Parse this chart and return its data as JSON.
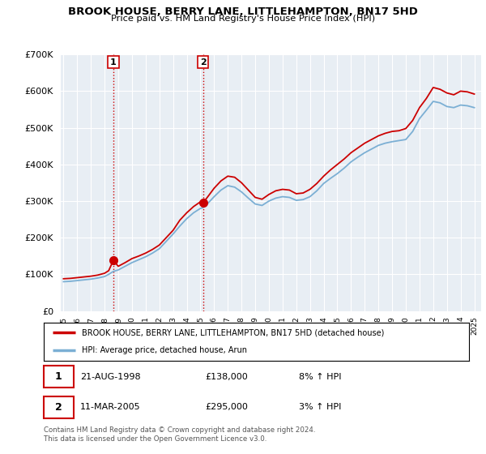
{
  "title": "BROOK HOUSE, BERRY LANE, LITTLEHAMPTON, BN17 5HD",
  "subtitle": "Price paid vs. HM Land Registry's House Price Index (HPI)",
  "legend_line1": "BROOK HOUSE, BERRY LANE, LITTLEHAMPTON, BN17 5HD (detached house)",
  "legend_line2": "HPI: Average price, detached house, Arun",
  "annotation1_label": "1",
  "annotation1_date": "21-AUG-1998",
  "annotation1_price": "£138,000",
  "annotation1_hpi": "8% ↑ HPI",
  "annotation2_label": "2",
  "annotation2_date": "11-MAR-2005",
  "annotation2_price": "£295,000",
  "annotation2_hpi": "3% ↑ HPI",
  "footnote": "Contains HM Land Registry data © Crown copyright and database right 2024.\nThis data is licensed under the Open Government Licence v3.0.",
  "property_color": "#cc0000",
  "hpi_color": "#7bafd4",
  "vline_color": "#cc0000",
  "plot_bg_color": "#e8eef4",
  "background_color": "#ffffff",
  "grid_color": "#ffffff",
  "ylim": [
    0,
    700000
  ],
  "xlim_start": 1994.8,
  "xlim_end": 2025.5,
  "sale1_x": 1998.64,
  "sale1_y": 138000,
  "sale2_x": 2005.19,
  "sale2_y": 295000,
  "years": [
    1995.0,
    1995.5,
    1996.0,
    1996.5,
    1997.0,
    1997.5,
    1998.0,
    1998.3,
    1998.64,
    1999.0,
    1999.5,
    2000.0,
    2000.5,
    2001.0,
    2001.5,
    2002.0,
    2002.5,
    2003.0,
    2003.5,
    2004.0,
    2004.5,
    2005.0,
    2005.19,
    2005.5,
    2006.0,
    2006.5,
    2007.0,
    2007.5,
    2008.0,
    2008.5,
    2009.0,
    2009.5,
    2010.0,
    2010.5,
    2011.0,
    2011.5,
    2012.0,
    2012.5,
    2013.0,
    2013.5,
    2014.0,
    2014.5,
    2015.0,
    2015.5,
    2016.0,
    2016.5,
    2017.0,
    2017.5,
    2018.0,
    2018.5,
    2019.0,
    2019.5,
    2020.0,
    2020.5,
    2021.0,
    2021.5,
    2022.0,
    2022.5,
    2023.0,
    2023.5,
    2024.0,
    2024.5,
    2025.0
  ],
  "property_values": [
    88000,
    89000,
    91000,
    93000,
    95000,
    98000,
    103000,
    110000,
    138000,
    122000,
    132000,
    143000,
    150000,
    158000,
    168000,
    180000,
    200000,
    220000,
    248000,
    268000,
    285000,
    298000,
    295000,
    310000,
    335000,
    355000,
    368000,
    365000,
    350000,
    330000,
    310000,
    305000,
    318000,
    328000,
    332000,
    330000,
    320000,
    322000,
    332000,
    348000,
    368000,
    385000,
    400000,
    415000,
    432000,
    445000,
    458000,
    468000,
    478000,
    485000,
    490000,
    492000,
    498000,
    520000,
    555000,
    580000,
    610000,
    605000,
    595000,
    590000,
    600000,
    598000,
    592000
  ],
  "hpi_values": [
    80000,
    81000,
    83000,
    85000,
    87000,
    90000,
    94000,
    100000,
    108000,
    112000,
    122000,
    132000,
    140000,
    148000,
    158000,
    170000,
    190000,
    210000,
    232000,
    252000,
    268000,
    280000,
    282000,
    292000,
    312000,
    330000,
    342000,
    338000,
    325000,
    308000,
    292000,
    288000,
    300000,
    308000,
    312000,
    310000,
    302000,
    304000,
    312000,
    328000,
    348000,
    362000,
    375000,
    390000,
    407000,
    420000,
    432000,
    442000,
    452000,
    458000,
    462000,
    465000,
    468000,
    490000,
    525000,
    548000,
    572000,
    568000,
    558000,
    555000,
    562000,
    560000,
    555000
  ]
}
